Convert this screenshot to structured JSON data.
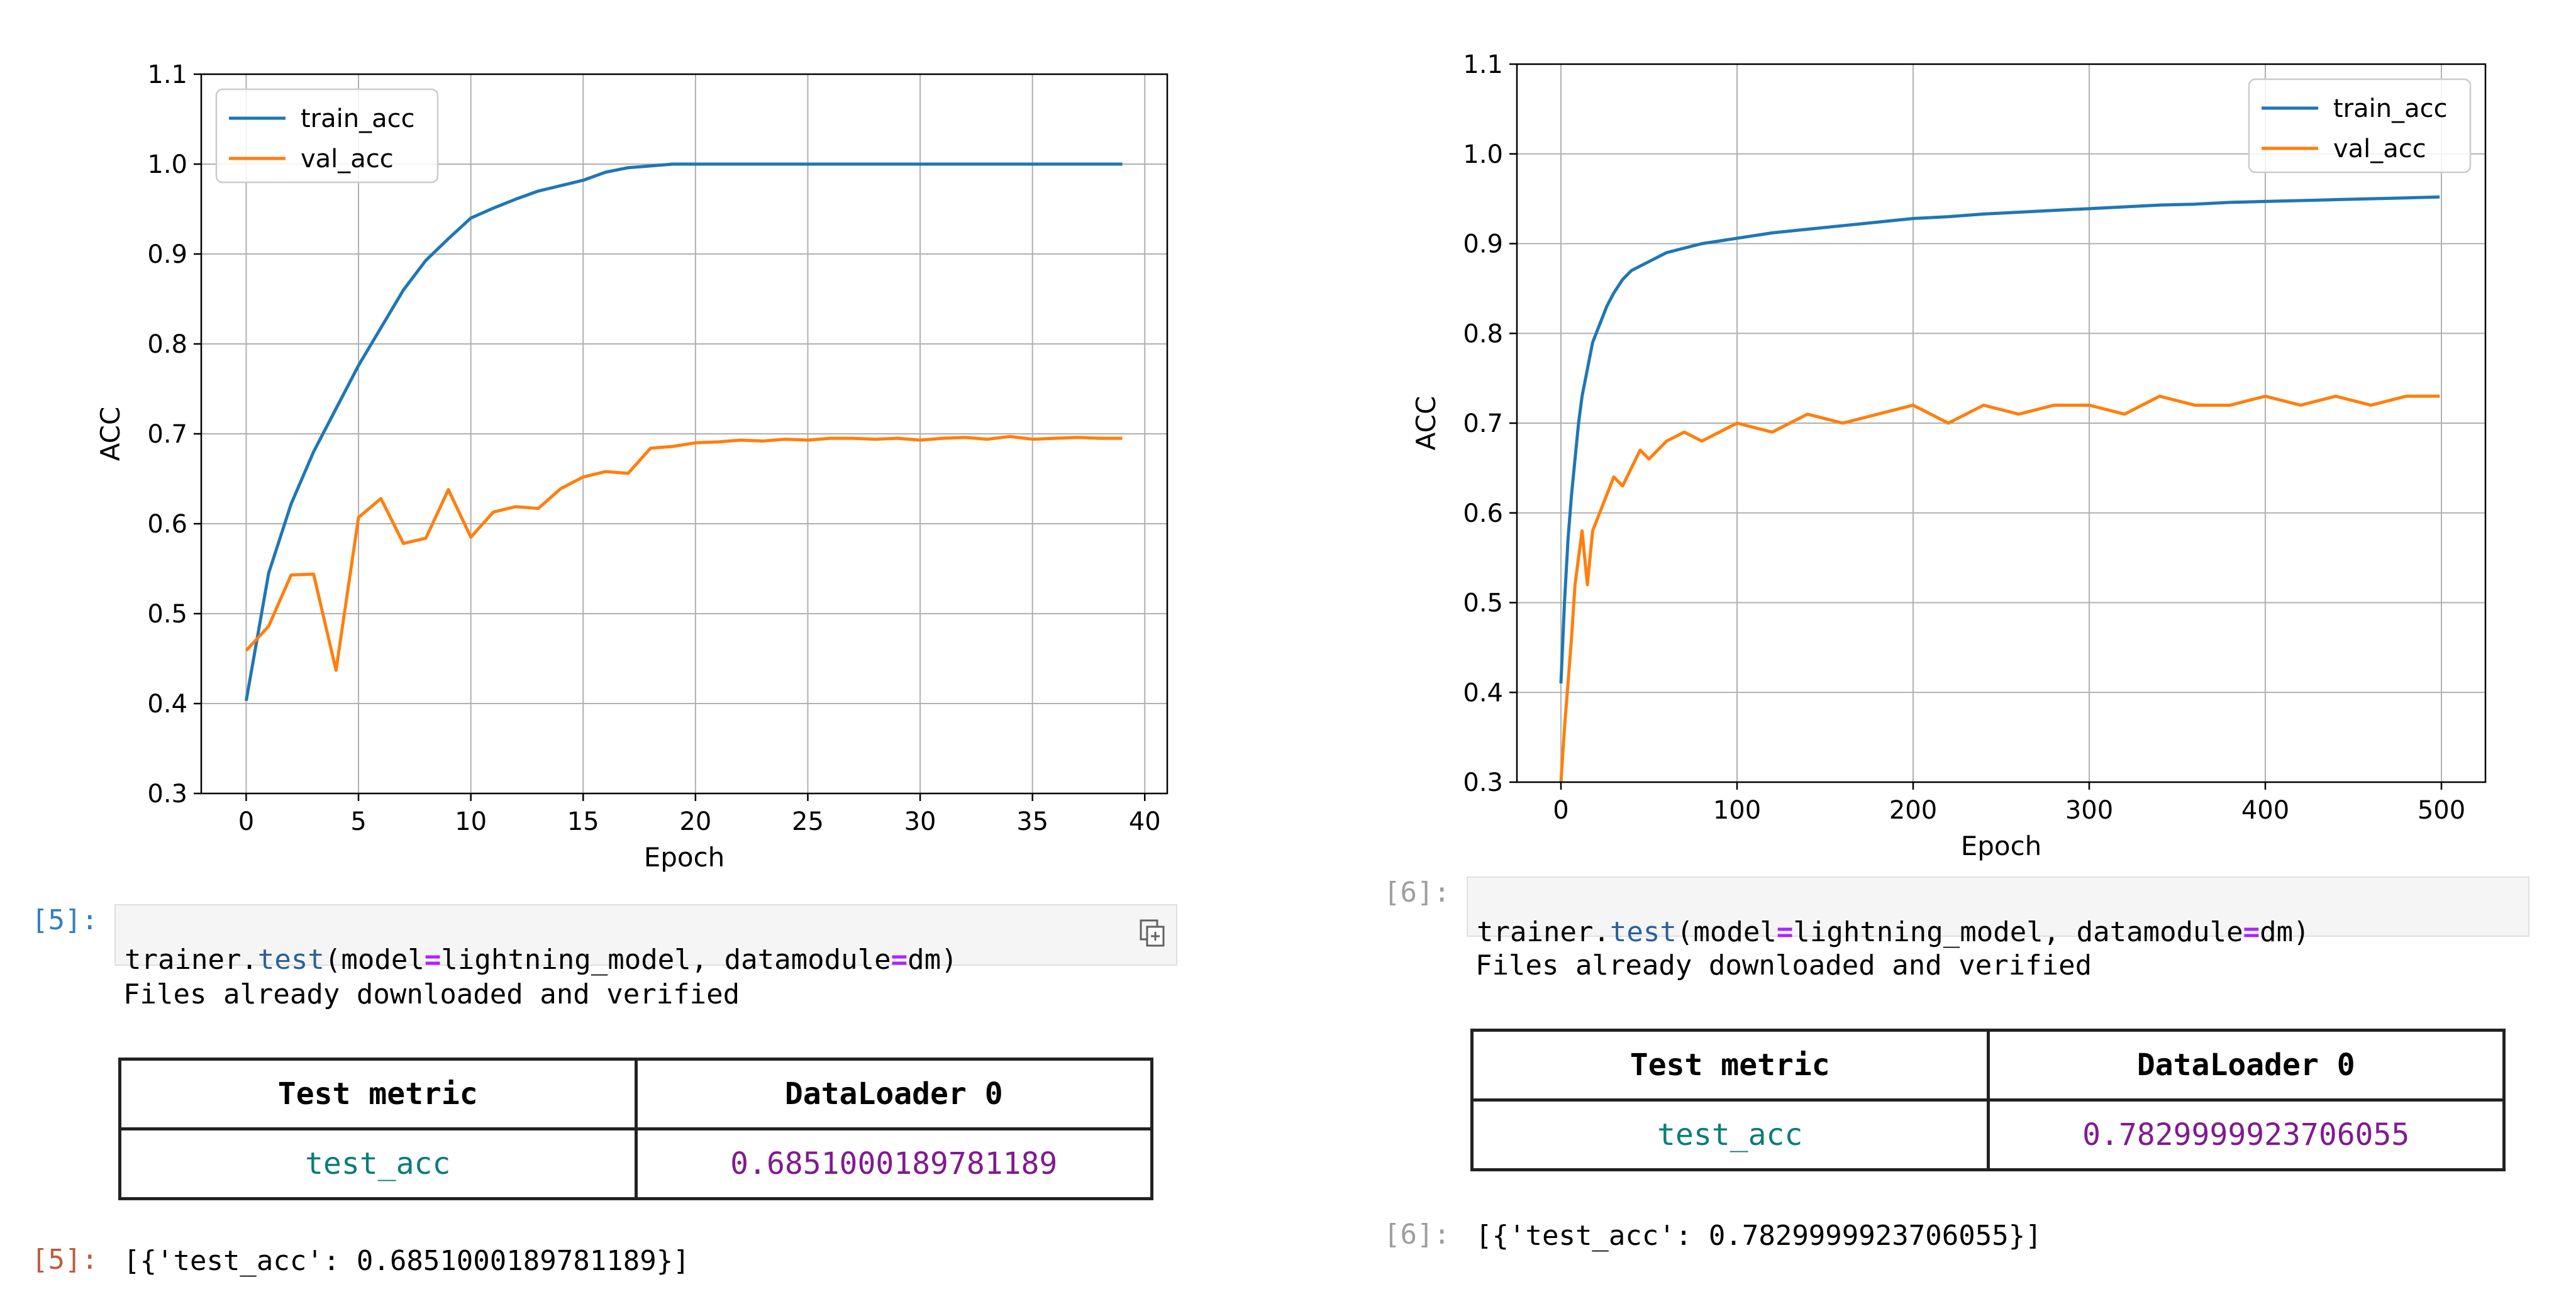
{
  "colors": {
    "train": "#1f77b4",
    "val": "#ff7f0e",
    "prompt_in_active": "#307fc1",
    "prompt_out_active": "#bf5b3d",
    "prompt_dim": "#9e9e9e",
    "metric_name": "#0b7c79",
    "metric_value": "#801b8f"
  },
  "left": {
    "code_prompt": "[5]:",
    "code": {
      "obj": "trainer.",
      "method": "test",
      "args_open": "(model",
      "eq1": "=",
      "arg1": "lightning_model, datamodule",
      "eq2": "=",
      "arg2": "dm)"
    },
    "stdout": "Files already downloaded and verified",
    "table": {
      "header_metric": "Test metric",
      "header_loader": "DataLoader 0",
      "metric_name": "test_acc",
      "metric_value": "0.6851000189781189"
    },
    "out_prompt": "[5]:",
    "result": "[{'test_acc': 0.6851000189781189}]"
  },
  "right": {
    "code_prompt": "[6]:",
    "code": {
      "obj": "trainer.",
      "method": "test",
      "args_open": "(model",
      "eq1": "=",
      "arg1": "lightning_model, datamodule",
      "eq2": "=",
      "arg2": "dm)"
    },
    "stdout": "Files already downloaded and verified",
    "table": {
      "header_metric": "Test metric",
      "header_loader": "DataLoader 0",
      "metric_name": "test_acc",
      "metric_value": "0.7829999923706055"
    },
    "out_prompt": "[6]:",
    "result": "[{'test_acc': 0.7829999923706055}]"
  },
  "chart_data": [
    {
      "type": "line",
      "xlabel": "Epoch",
      "ylabel": "ACC",
      "xlim": [
        -2,
        41
      ],
      "ylim": [
        0.3,
        1.1
      ],
      "xticks": [
        0,
        5,
        10,
        15,
        20,
        25,
        30,
        35,
        40
      ],
      "yticks": [
        0.3,
        0.4,
        0.5,
        0.6,
        0.7,
        0.8,
        0.9,
        1.0,
        1.1
      ],
      "grid": true,
      "legend": "top-left",
      "x": [
        0,
        1,
        2,
        3,
        4,
        5,
        6,
        7,
        8,
        9,
        10,
        11,
        12,
        13,
        14,
        15,
        16,
        17,
        18,
        19,
        20,
        21,
        22,
        23,
        24,
        25,
        26,
        27,
        28,
        29,
        30,
        31,
        32,
        33,
        34,
        35,
        36,
        37,
        38,
        39
      ],
      "series": [
        {
          "name": "train_acc",
          "values": [
            0.403,
            0.545,
            0.622,
            0.68,
            0.728,
            0.776,
            0.818,
            0.86,
            0.893,
            0.917,
            0.94,
            0.951,
            0.961,
            0.97,
            0.976,
            0.982,
            0.991,
            0.996,
            0.998,
            1.0,
            1.0,
            1.0,
            1.0,
            1.0,
            1.0,
            1.0,
            1.0,
            1.0,
            1.0,
            1.0,
            1.0,
            1.0,
            1.0,
            1.0,
            1.0,
            1.0,
            1.0,
            1.0,
            1.0,
            1.0
          ]
        },
        {
          "name": "val_acc",
          "values": [
            0.459,
            0.486,
            0.543,
            0.544,
            0.437,
            0.607,
            0.628,
            0.578,
            0.584,
            0.638,
            0.585,
            0.613,
            0.619,
            0.617,
            0.639,
            0.652,
            0.658,
            0.656,
            0.684,
            0.686,
            0.69,
            0.691,
            0.693,
            0.692,
            0.694,
            0.693,
            0.695,
            0.695,
            0.694,
            0.695,
            0.693,
            0.695,
            0.696,
            0.694,
            0.697,
            0.694,
            0.695,
            0.696,
            0.695,
            0.695
          ]
        }
      ]
    },
    {
      "type": "line",
      "xlabel": "Epoch",
      "ylabel": "ACC",
      "xlim": [
        -25,
        525
      ],
      "ylim": [
        0.3,
        1.1
      ],
      "xticks": [
        0,
        100,
        200,
        300,
        400,
        500
      ],
      "yticks": [
        0.3,
        0.4,
        0.5,
        0.6,
        0.7,
        0.8,
        0.9,
        1.0,
        1.1
      ],
      "grid": true,
      "legend": "top-right",
      "x": [
        0,
        2,
        4,
        6,
        8,
        10,
        12,
        15,
        18,
        22,
        26,
        30,
        35,
        40,
        45,
        50,
        60,
        70,
        80,
        90,
        100,
        120,
        140,
        160,
        180,
        200,
        220,
        240,
        260,
        280,
        300,
        320,
        340,
        360,
        380,
        400,
        420,
        440,
        460,
        480,
        499
      ],
      "series": [
        {
          "name": "train_acc",
          "values": [
            0.41,
            0.5,
            0.57,
            0.62,
            0.66,
            0.7,
            0.73,
            0.76,
            0.79,
            0.81,
            0.83,
            0.845,
            0.86,
            0.87,
            0.875,
            0.88,
            0.89,
            0.895,
            0.9,
            0.903,
            0.906,
            0.912,
            0.916,
            0.92,
            0.924,
            0.928,
            0.93,
            0.933,
            0.935,
            0.937,
            0.939,
            0.941,
            0.943,
            0.944,
            0.946,
            0.947,
            0.948,
            0.949,
            0.95,
            0.951,
            0.952
          ]
        },
        {
          "name": "val_acc",
          "values": [
            0.3,
            0.36,
            0.41,
            0.46,
            0.52,
            0.55,
            0.58,
            0.52,
            0.58,
            0.6,
            0.62,
            0.64,
            0.63,
            0.65,
            0.67,
            0.66,
            0.68,
            0.69,
            0.68,
            0.69,
            0.7,
            0.69,
            0.71,
            0.7,
            0.71,
            0.72,
            0.7,
            0.72,
            0.71,
            0.72,
            0.72,
            0.71,
            0.73,
            0.72,
            0.72,
            0.73,
            0.72,
            0.73,
            0.72,
            0.73,
            0.73
          ]
        }
      ]
    }
  ]
}
